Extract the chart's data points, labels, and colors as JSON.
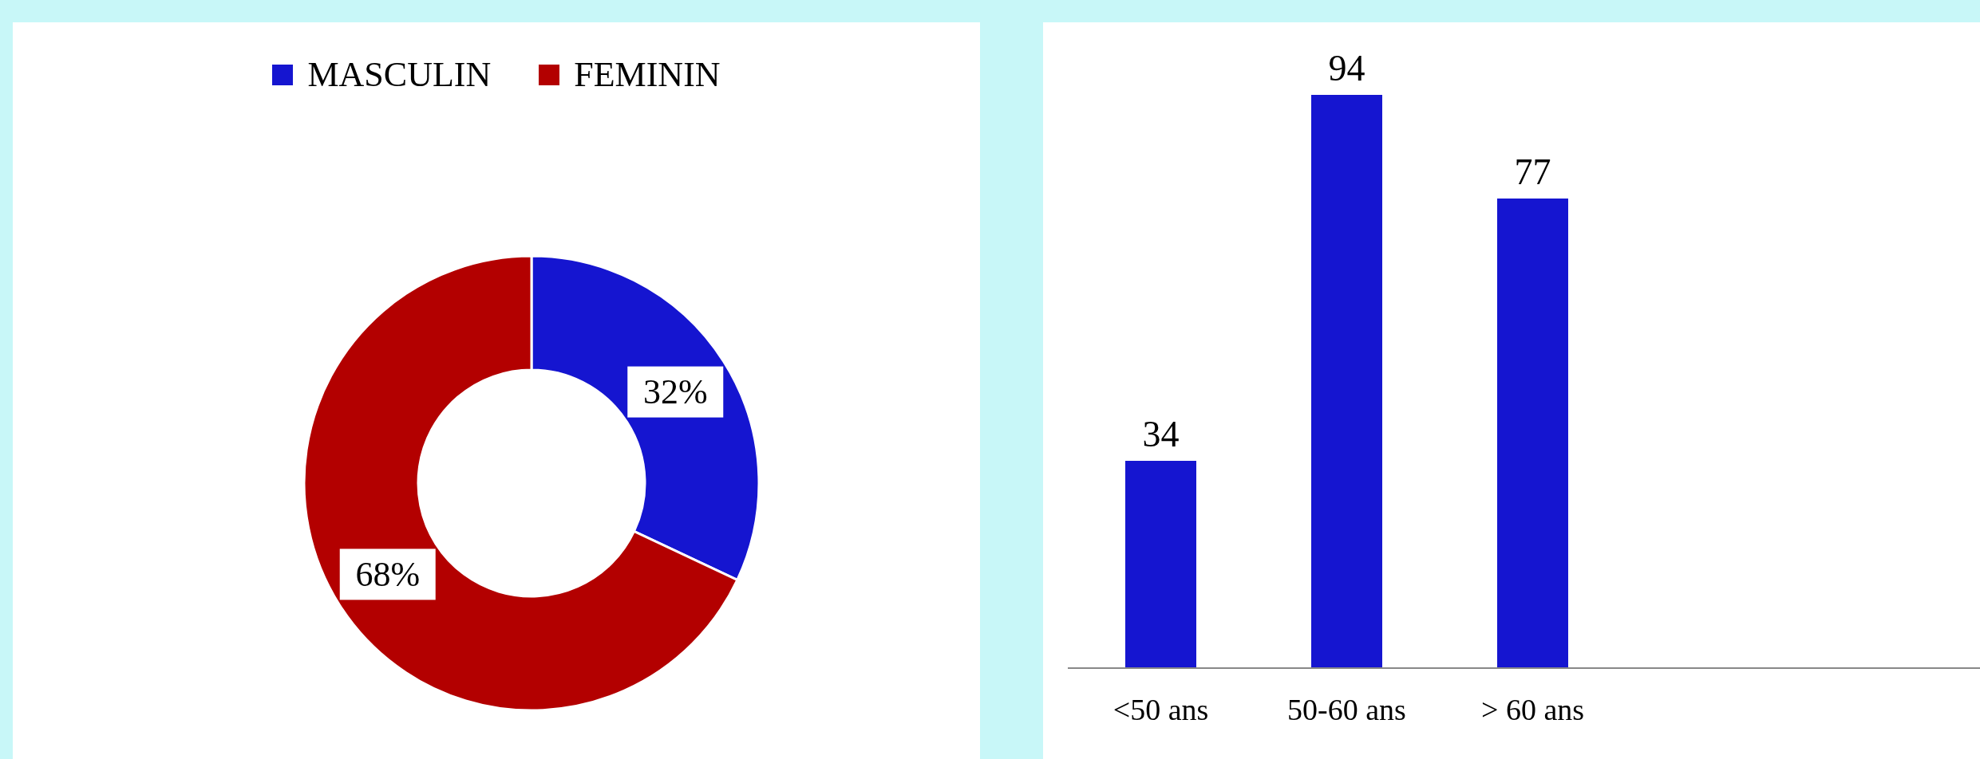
{
  "chart_data": [
    {
      "type": "donut",
      "categories": [
        "MASCULIN",
        "FEMININ"
      ],
      "values": [
        32,
        68
      ],
      "colors": [
        "#1515d0",
        "#b30000"
      ],
      "legend": "top",
      "value_labels": [
        "32%",
        "68%"
      ]
    },
    {
      "type": "bar",
      "categories": [
        "<50 ans",
        "50-60 ans",
        "> 60 ans"
      ],
      "values": [
        34,
        94,
        77
      ],
      "color": "#1515d0",
      "data_labels": true
    }
  ]
}
